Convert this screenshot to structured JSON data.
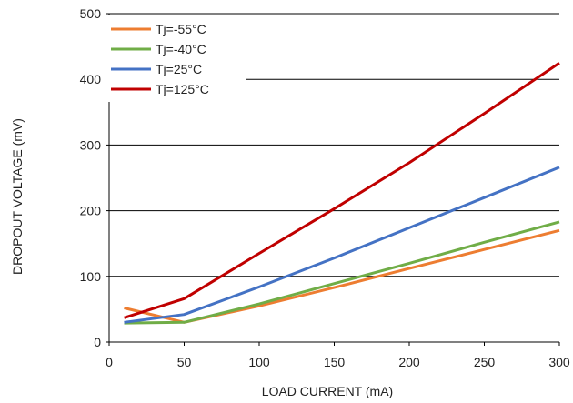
{
  "colors": {
    "series_-55": "#ED7D31",
    "series_-40": "#70AD47",
    "series_25": "#4472C4",
    "series_125": "#C00000",
    "axis": "#000000",
    "grid": "#000000"
  },
  "chart_data": {
    "type": "line",
    "title": "",
    "xlabel": "LOAD CURRENT (mA)",
    "ylabel": "DROPOUT VOLTAGE (mV)",
    "xlim": [
      0,
      300
    ],
    "ylim": [
      0,
      500
    ],
    "x_ticks": [
      0,
      50,
      100,
      150,
      200,
      250,
      300
    ],
    "y_ticks": [
      0,
      100,
      200,
      300,
      400,
      500
    ],
    "x_tick_labels": [
      "0",
      "50",
      "100",
      "150",
      "200",
      "250",
      "300"
    ],
    "y_tick_labels": [
      "0",
      "100",
      "200",
      "300",
      "400",
      "500"
    ],
    "grid": "horizontal",
    "legend_position": "top-left",
    "series": [
      {
        "name": "Tj=-55°C",
        "color": "#ED7D31",
        "x": [
          10,
          50,
          100,
          150,
          200,
          250,
          300
        ],
        "y": [
          52,
          30,
          55,
          83,
          112,
          141,
          170
        ]
      },
      {
        "name": "Tj=-40°C",
        "color": "#70AD47",
        "x": [
          10,
          50,
          100,
          150,
          200,
          250,
          300
        ],
        "y": [
          29,
          30,
          58,
          89,
          120,
          152,
          183
        ]
      },
      {
        "name": "Tj=25°C",
        "color": "#4472C4",
        "x": [
          10,
          50,
          100,
          150,
          200,
          250,
          300
        ],
        "y": [
          30,
          42,
          84,
          128,
          174,
          220,
          266
        ]
      },
      {
        "name": "Tj=125°C",
        "color": "#C00000",
        "x": [
          10,
          50,
          100,
          150,
          200,
          250,
          300
        ],
        "y": [
          37,
          66,
          135,
          203,
          273,
          348,
          425
        ]
      }
    ]
  }
}
